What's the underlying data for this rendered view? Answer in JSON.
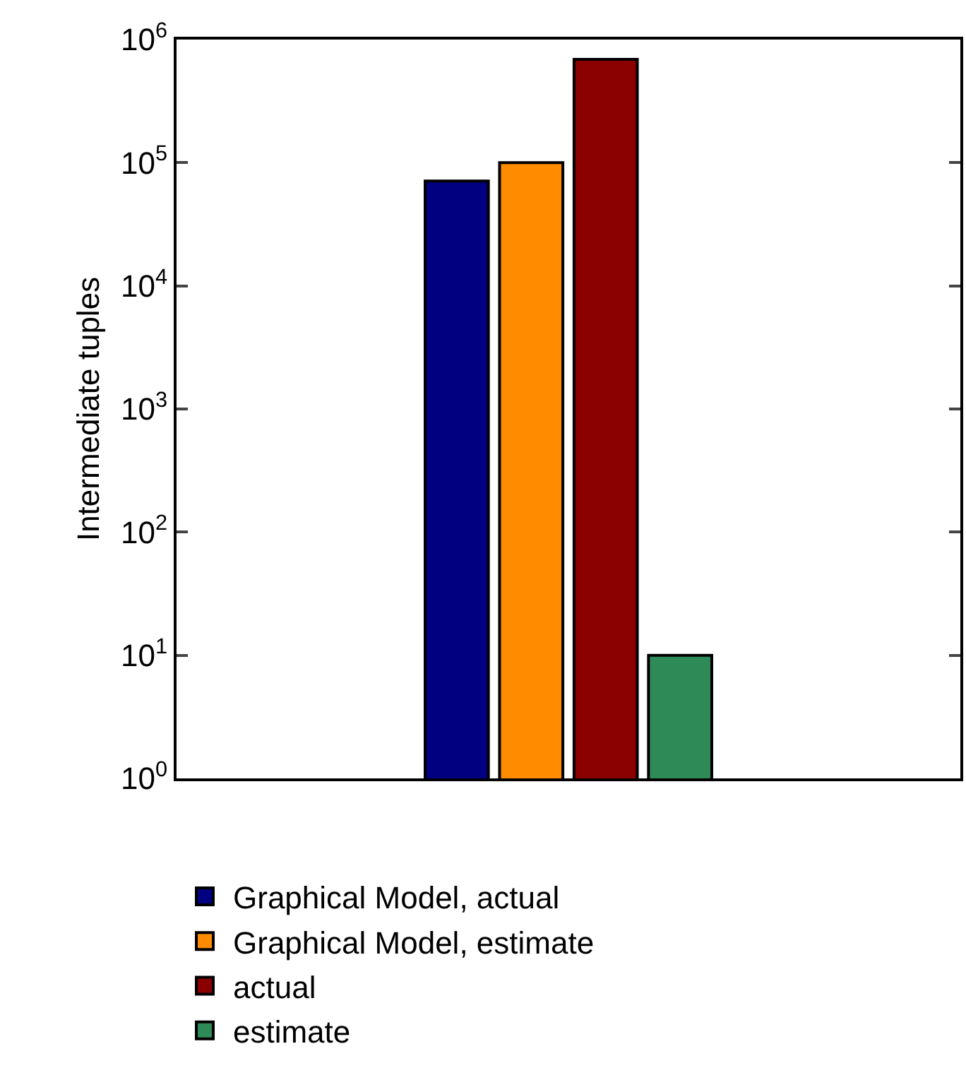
{
  "chart_data": {
    "type": "bar",
    "ylabel": "Intermediate tuples",
    "categories": [
      null
    ],
    "log": true,
    "ylim": [
      1,
      1000000
    ],
    "yticks": [
      {
        "value": 1,
        "label": "10$^{0}$"
      },
      {
        "value": 10,
        "label": "10$^{1}$"
      },
      {
        "value": 100,
        "label": "10$^{2}$"
      },
      {
        "value": 1000,
        "label": "10$^{3}$"
      },
      {
        "value": 10000,
        "label": "10$^{4}$"
      },
      {
        "value": 100000,
        "label": "10$^{5}$"
      },
      {
        "value": 1000000,
        "label": "10$^{6}$"
      }
    ],
    "series": [
      {
        "name": "Graphical Model, actual",
        "color": "#000080",
        "values": [
          71000
        ]
      },
      {
        "name": "Graphical Model, estimate",
        "color": "#ff8c00",
        "values": [
          100000
        ]
      },
      {
        "name": "actual",
        "color": "#8b0000",
        "values": [
          690000
        ]
      },
      {
        "name": "estimate",
        "color": "#2e8b57",
        "values": [
          10
        ]
      }
    ],
    "grid": false,
    "legend": "bottom",
    "tick_labels": "y"
  }
}
